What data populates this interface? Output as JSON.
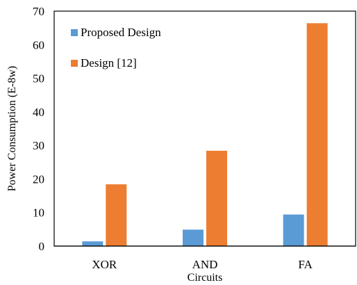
{
  "chart_data": {
    "type": "bar",
    "categories": [
      "XOR",
      "AND",
      "FA"
    ],
    "series": [
      {
        "name": "Proposed Design",
        "values": [
          1.4,
          4.9,
          9.4
        ],
        "color": "#5b9bd5"
      },
      {
        "name": "Design [12]",
        "values": [
          18.4,
          28.4,
          66.4
        ],
        "color": "#ed7d31"
      }
    ],
    "xlabel": "Circuits",
    "ylabel": "Power Consumption (E-8w)",
    "ylim": [
      0,
      70
    ],
    "yticks": [
      0,
      10,
      20,
      30,
      40,
      50,
      60,
      70
    ],
    "grid": false,
    "legend_position": "top-left"
  }
}
